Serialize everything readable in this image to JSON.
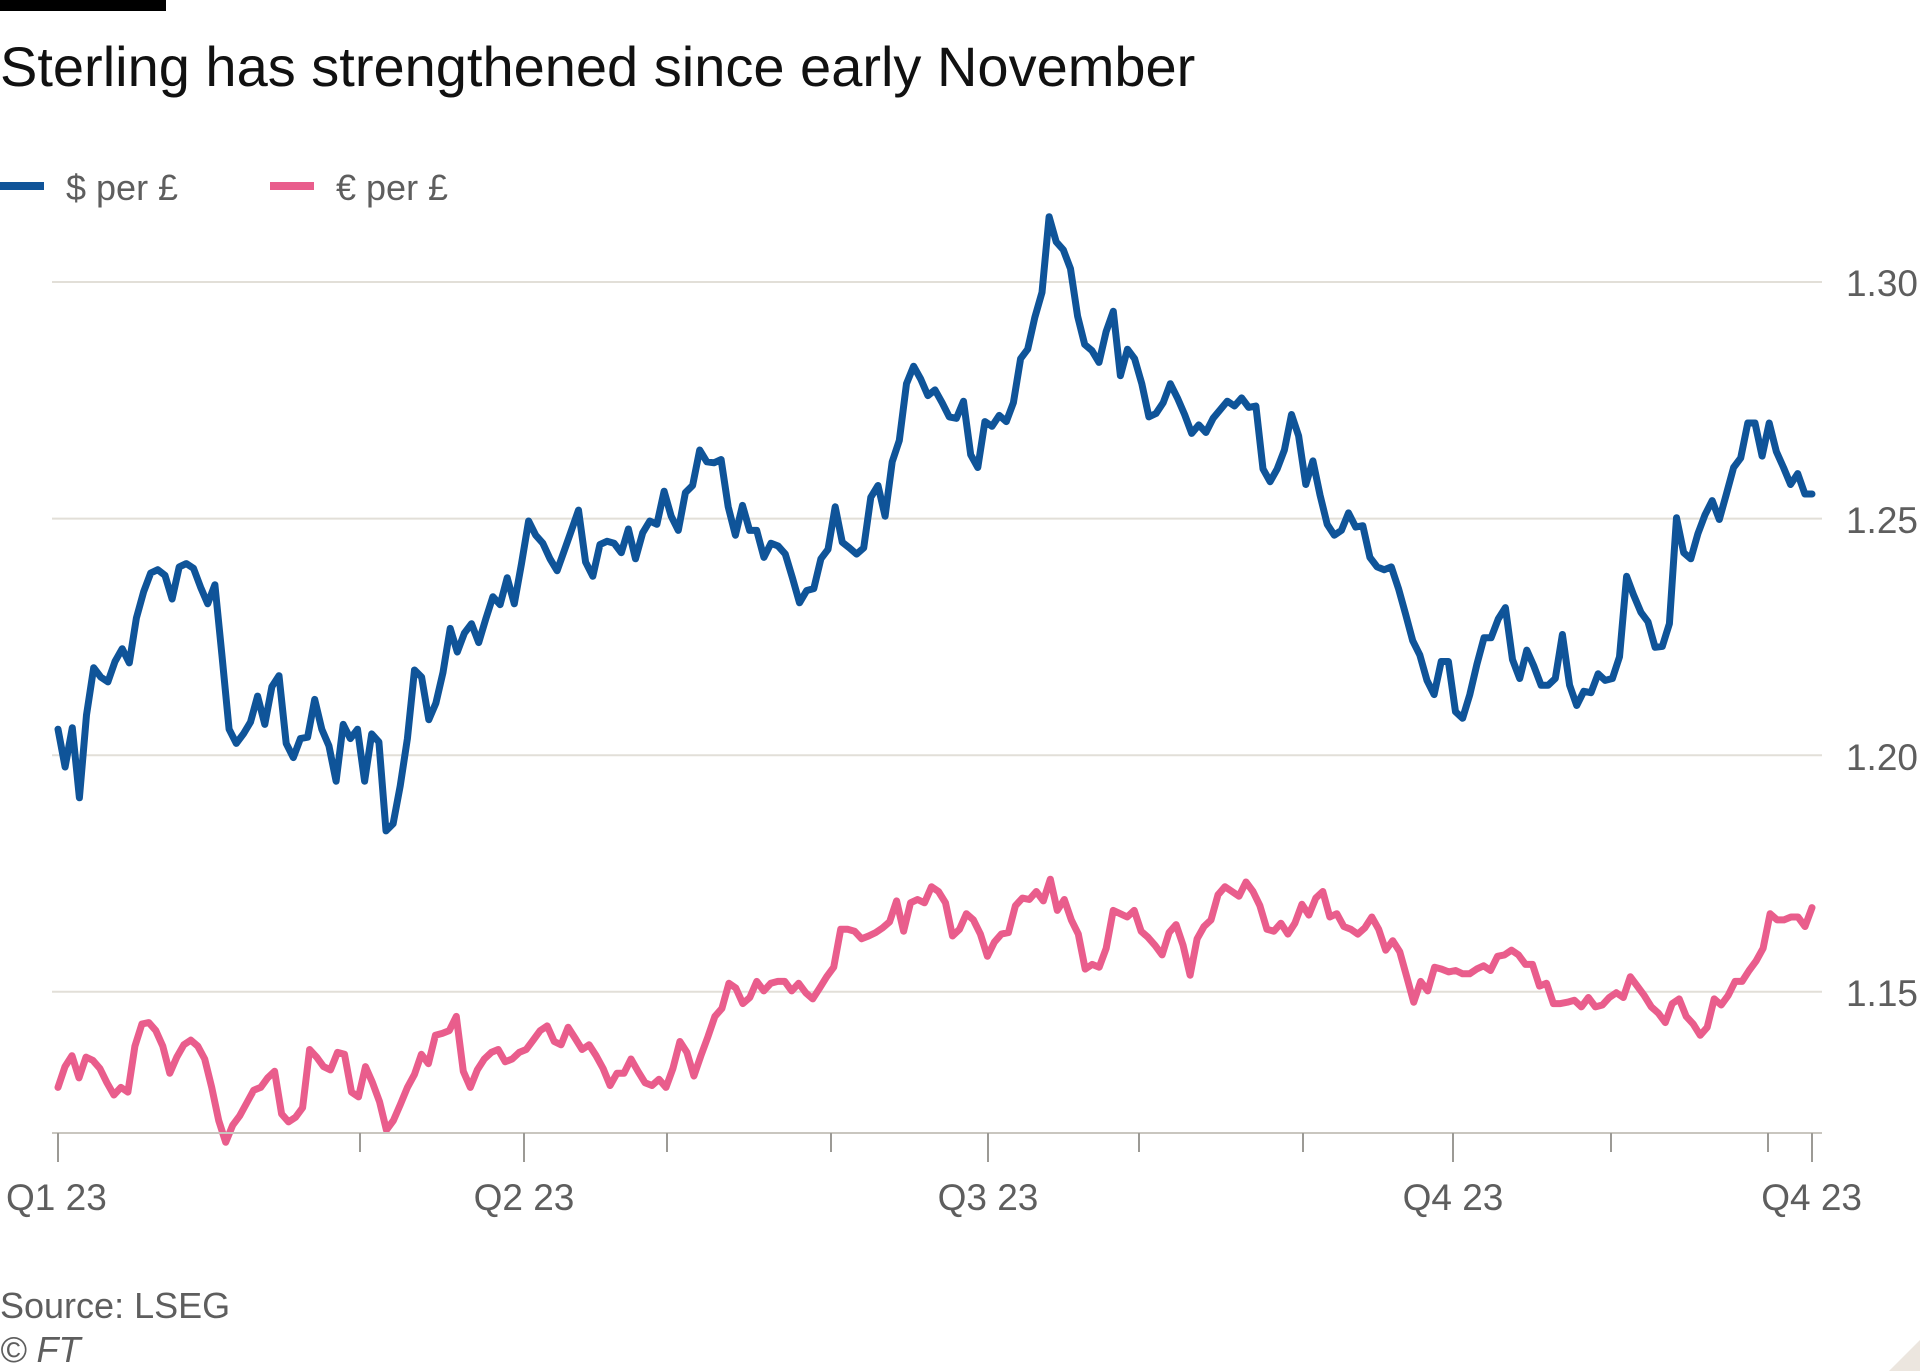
{
  "chart_data": {
    "type": "line",
    "title": "Sterling has strengthened since early November",
    "source": "Source: LSEG",
    "copyright": "© FT",
    "ylim": [
      1.12,
      1.315
    ],
    "yticks": [
      "1.30",
      "1.25",
      "1.20",
      "1.15"
    ],
    "ytick_values": [
      1.3,
      1.25,
      1.2,
      1.15
    ],
    "xticks": [
      "Q1 23",
      "Q2 23",
      "Q3 23",
      "Q4 23",
      "Q4 23"
    ],
    "legend_position": "top-left",
    "grid": true,
    "series": [
      {
        "name": "$ per £",
        "color": "#0f5499",
        "values": [
          1.2055,
          1.1975,
          1.2058,
          1.191,
          1.2085,
          1.2185,
          1.2165,
          1.2155,
          1.2198,
          1.2225,
          1.2195,
          1.229,
          1.2345,
          1.2385,
          1.2392,
          1.238,
          1.233,
          1.2398,
          1.2405,
          1.2395,
          1.2355,
          1.232,
          1.236,
          1.221,
          1.2055,
          1.2025,
          1.2045,
          1.207,
          1.2125,
          1.2065,
          1.2145,
          1.2168,
          1.2025,
          1.1995,
          1.2035,
          1.2038,
          1.2118,
          1.2055,
          1.202,
          1.1945,
          1.2065,
          1.2035,
          1.2055,
          1.1945,
          1.2045,
          1.2028,
          1.184,
          1.1855,
          1.1935,
          1.2035,
          1.218,
          1.2165,
          1.2075,
          1.211,
          1.2175,
          1.2268,
          1.2218,
          1.2258,
          1.2278,
          1.2238,
          1.2288,
          1.2335,
          1.2318,
          1.2375,
          1.232,
          1.2405,
          1.2495,
          1.2465,
          1.2448,
          1.2415,
          1.239,
          1.2432,
          1.2475,
          1.2518,
          1.2408,
          1.2378,
          1.2445,
          1.2452,
          1.2448,
          1.2428,
          1.2478,
          1.2415,
          1.247,
          1.2495,
          1.2488,
          1.2558,
          1.2505,
          1.2475,
          1.2555,
          1.257,
          1.2645,
          1.262,
          1.2618,
          1.2625,
          1.2525,
          1.2465,
          1.2528,
          1.2475,
          1.2475,
          1.2418,
          1.2448,
          1.2442,
          1.2425,
          1.2375,
          1.2322,
          1.2348,
          1.2352,
          1.2415,
          1.2435,
          1.2525,
          1.245,
          1.2438,
          1.2425,
          1.2438,
          1.2545,
          1.257,
          1.2505,
          1.262,
          1.2665,
          1.2785,
          1.2822,
          1.2795,
          1.276,
          1.2772,
          1.2745,
          1.2715,
          1.2712,
          1.2748,
          1.2635,
          1.2608,
          1.2705,
          1.2695,
          1.2718,
          1.2705,
          1.2745,
          1.2838,
          1.2858,
          1.2925,
          1.2978,
          1.3138,
          1.3085,
          1.3068,
          1.3028,
          1.2928,
          1.2868,
          1.2855,
          1.283,
          1.2895,
          1.2938,
          1.2802,
          1.2858,
          1.2838,
          1.2785,
          1.2715,
          1.2722,
          1.2745,
          1.2785,
          1.2755,
          1.272,
          1.268,
          1.2698,
          1.2682,
          1.2712,
          1.273,
          1.2748,
          1.2738,
          1.2755,
          1.2735,
          1.2738,
          1.2605,
          1.2578,
          1.2605,
          1.2645,
          1.272,
          1.2675,
          1.2572,
          1.2622,
          1.255,
          1.2488,
          1.2465,
          1.2475,
          1.2512,
          1.2482,
          1.2485,
          1.2418,
          1.2398,
          1.2392,
          1.2398,
          1.2352,
          1.2298,
          1.2242,
          1.2212,
          1.2158,
          1.2128,
          1.2198,
          1.2198,
          1.2092,
          1.2078,
          1.2128,
          1.2192,
          1.2248,
          1.2248,
          1.2288,
          1.2312,
          1.2202,
          1.2162,
          1.2222,
          1.2188,
          1.2148,
          1.2148,
          1.2162,
          1.2255,
          1.2148,
          1.2105,
          1.2135,
          1.2132,
          1.2172,
          1.2158,
          1.2162,
          1.2208,
          1.2378,
          1.2338,
          1.2302,
          1.2282,
          1.2228,
          1.223,
          1.2278,
          1.2502,
          1.2428,
          1.2415,
          1.2468,
          1.2508,
          1.2538,
          1.2498,
          1.2552,
          1.2608,
          1.2628,
          1.2702,
          1.2702,
          1.2632,
          1.2702,
          1.2642,
          1.2608,
          1.2572,
          1.2595,
          1.2552,
          1.2552
        ]
      },
      {
        "name": "€ per £",
        "color": "#e95d8c",
        "values": [
          1.1298,
          1.1342,
          1.1365,
          1.1318,
          1.1362,
          1.1355,
          1.1338,
          1.1308,
          1.1282,
          1.1298,
          1.1288,
          1.1385,
          1.1432,
          1.1435,
          1.1418,
          1.1385,
          1.1328,
          1.1362,
          1.1388,
          1.1398,
          1.1385,
          1.1358,
          1.1298,
          1.1228,
          1.1182,
          1.1218,
          1.1238,
          1.1265,
          1.1292,
          1.1298,
          1.1318,
          1.1332,
          1.1242,
          1.1225,
          1.1235,
          1.1255,
          1.1378,
          1.1362,
          1.1342,
          1.1335,
          1.1372,
          1.1368,
          1.1288,
          1.1278,
          1.1342,
          1.1308,
          1.1268,
          1.1208,
          1.1228,
          1.1262,
          1.1298,
          1.1325,
          1.1368,
          1.1348,
          1.1408,
          1.1412,
          1.1418,
          1.1448,
          1.1332,
          1.1298,
          1.1335,
          1.1358,
          1.1372,
          1.1378,
          1.1352,
          1.1358,
          1.1372,
          1.1378,
          1.1398,
          1.1418,
          1.1428,
          1.1395,
          1.1388,
          1.1425,
          1.1402,
          1.1378,
          1.1388,
          1.1365,
          1.1338,
          1.1302,
          1.1328,
          1.1328,
          1.1358,
          1.1332,
          1.1308,
          1.1302,
          1.1315,
          1.1298,
          1.1338,
          1.1395,
          1.1372,
          1.1322,
          1.1365,
          1.1405,
          1.1448,
          1.1465,
          1.1518,
          1.1508,
          1.1475,
          1.1488,
          1.1522,
          1.1502,
          1.1518,
          1.1522,
          1.1522,
          1.1502,
          1.1518,
          1.1498,
          1.1485,
          1.1508,
          1.1532,
          1.1552,
          1.1632,
          1.1632,
          1.1628,
          1.1612,
          1.1618,
          1.1625,
          1.1635,
          1.1648,
          1.1692,
          1.1628,
          1.1688,
          1.1695,
          1.1688,
          1.1722,
          1.1712,
          1.1688,
          1.1618,
          1.1632,
          1.1665,
          1.1652,
          1.1622,
          1.1575,
          1.1605,
          1.1622,
          1.1625,
          1.1682,
          1.1698,
          1.1695,
          1.1712,
          1.1692,
          1.1738,
          1.1672,
          1.1695,
          1.1652,
          1.1622,
          1.1548,
          1.1558,
          1.1552,
          1.1592,
          1.1672,
          1.1665,
          1.1658,
          1.1672,
          1.1628,
          1.1615,
          1.1598,
          1.1578,
          1.1625,
          1.1642,
          1.1598,
          1.1535,
          1.1612,
          1.1638,
          1.1652,
          1.1705,
          1.1722,
          1.1712,
          1.1702,
          1.1732,
          1.1712,
          1.1682,
          1.1632,
          1.1628,
          1.1645,
          1.1622,
          1.1645,
          1.1685,
          1.1662,
          1.1698,
          1.1712,
          1.1658,
          1.1665,
          1.1638,
          1.1632,
          1.1622,
          1.1635,
          1.1658,
          1.1632,
          1.1588,
          1.1608,
          1.1585,
          1.1532,
          1.1478,
          1.1522,
          1.1502,
          1.1552,
          1.1548,
          1.1542,
          1.1545,
          1.1538,
          1.1538,
          1.1548,
          1.1555,
          1.1545,
          1.1575,
          1.1578,
          1.1588,
          1.1578,
          1.1558,
          1.1558,
          1.1512,
          1.1518,
          1.1475,
          1.1475,
          1.1478,
          1.1482,
          1.1468,
          1.1488,
          1.1468,
          1.1472,
          1.1488,
          1.1498,
          1.1488,
          1.1532,
          1.1512,
          1.1492,
          1.1468,
          1.1455,
          1.1435,
          1.1475,
          1.1485,
          1.1448,
          1.1432,
          1.1408,
          1.1425,
          1.1485,
          1.1472,
          1.1492,
          1.1522,
          1.1522,
          1.1545,
          1.1565,
          1.1592,
          1.1665,
          1.1652,
          1.1652,
          1.1658,
          1.1658,
          1.1638,
          1.1678
        ]
      }
    ]
  }
}
